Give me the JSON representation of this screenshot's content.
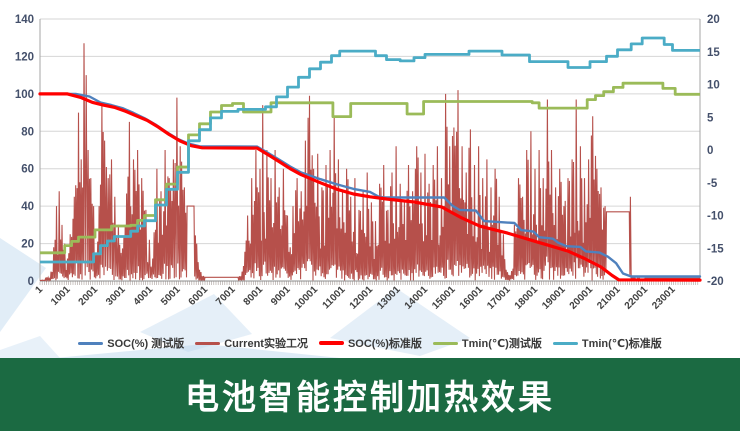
{
  "title_banner": {
    "text": "电池智能控制加热效果",
    "bg_color": "#1B6A42",
    "text_color": "#FFFFFF"
  },
  "chart_data": {
    "type": "line",
    "title": "",
    "grid": true,
    "legend_position": "bottom",
    "x_axis": {
      "range": [
        1,
        24000
      ],
      "tick_labels": [
        "1",
        "1001",
        "2001",
        "3001",
        "4001",
        "5001",
        "6001",
        "7001",
        "8001",
        "9001",
        "10001",
        "11001",
        "12001",
        "13001",
        "14001",
        "15001",
        "16001",
        "17001",
        "18001",
        "19001",
        "20001",
        "21001",
        "22001",
        "23001"
      ]
    },
    "y_axis_left": {
      "range": [
        0,
        140
      ],
      "ticks": [
        0,
        20,
        40,
        60,
        80,
        100,
        120,
        140
      ],
      "label_color": "#44506B"
    },
    "y_axis_right": {
      "range": [
        -20,
        20
      ],
      "ticks": [
        -20,
        -15,
        -10,
        -5,
        0,
        5,
        10,
        15,
        20
      ],
      "label_color": "#44506B"
    },
    "series": [
      {
        "name": "SOC(%) 测试版",
        "color": "#4F81BD",
        "axis": "left",
        "style": "line",
        "width": 2.4,
        "points": [
          [
            1,
            100
          ],
          [
            1300,
            100
          ],
          [
            1800,
            98.6
          ],
          [
            2200,
            95.4
          ],
          [
            2600,
            94
          ],
          [
            3000,
            92.4
          ],
          [
            3400,
            89.8
          ],
          [
            3800,
            87
          ],
          [
            4200,
            83.6
          ],
          [
            4600,
            79.6
          ],
          [
            5000,
            76
          ],
          [
            5400,
            73.4
          ],
          [
            5800,
            72
          ],
          [
            7900,
            71.8
          ],
          [
            8300,
            68.4
          ],
          [
            8700,
            64.8
          ],
          [
            9100,
            61.2
          ],
          [
            9500,
            58
          ],
          [
            10200,
            54.4
          ],
          [
            10800,
            51.6
          ],
          [
            11400,
            49.2
          ],
          [
            12000,
            47.6
          ],
          [
            12300,
            45.2
          ],
          [
            12500,
            44.6
          ],
          [
            14700,
            44.6
          ],
          [
            15000,
            40.2
          ],
          [
            15250,
            38
          ],
          [
            15850,
            37.6
          ],
          [
            16150,
            32
          ],
          [
            17250,
            31
          ],
          [
            17500,
            27.2
          ],
          [
            17950,
            26.4
          ],
          [
            18150,
            23.4
          ],
          [
            18650,
            22.6
          ],
          [
            18850,
            20.4
          ],
          [
            19150,
            18.6
          ],
          [
            19650,
            18.2
          ],
          [
            19850,
            15.8
          ],
          [
            20350,
            15.2
          ],
          [
            20650,
            13
          ],
          [
            20950,
            9.5
          ],
          [
            21200,
            4
          ],
          [
            21500,
            2.4
          ],
          [
            24000,
            2.4
          ]
        ]
      },
      {
        "name": "Current实验工况",
        "color": "#B6504B",
        "axis": "left",
        "style": "spikes",
        "width": 1.1,
        "points": [
          [
            1,
            0
          ],
          [
            250,
            2
          ],
          [
            400,
            5
          ],
          [
            500,
            18
          ],
          [
            600,
            40
          ],
          [
            700,
            48
          ],
          [
            800,
            30
          ],
          [
            900,
            20
          ],
          [
            1000,
            12
          ],
          [
            1100,
            25
          ],
          [
            1250,
            45
          ],
          [
            1400,
            90
          ],
          [
            1500,
            65
          ],
          [
            1600,
            127
          ],
          [
            1680,
            110
          ],
          [
            1750,
            70
          ],
          [
            1850,
            55
          ],
          [
            1950,
            40
          ],
          [
            2050,
            15
          ],
          [
            2150,
            40
          ],
          [
            2250,
            95
          ],
          [
            2350,
            75
          ],
          [
            2480,
            55
          ],
          [
            2600,
            65
          ],
          [
            2720,
            45
          ],
          [
            2850,
            30
          ],
          [
            2950,
            15
          ],
          [
            3100,
            30
          ],
          [
            3250,
            85
          ],
          [
            3400,
            65
          ],
          [
            3550,
            70
          ],
          [
            3700,
            55
          ],
          [
            3850,
            38
          ],
          [
            3980,
            22
          ],
          [
            4100,
            12
          ],
          [
            4250,
            60
          ],
          [
            4400,
            48
          ],
          [
            4550,
            70
          ],
          [
            4700,
            55
          ],
          [
            4850,
            65
          ],
          [
            4980,
            98
          ],
          [
            5100,
            72
          ],
          [
            5250,
            50
          ],
          [
            5350,
            40
          ],
          [
            5600,
            40
          ],
          [
            5700,
            20
          ],
          [
            5800,
            6
          ],
          [
            6000,
            2
          ],
          [
            7200,
            2
          ],
          [
            7400,
            8
          ],
          [
            7550,
            35
          ],
          [
            7700,
            55
          ],
          [
            7850,
            70
          ],
          [
            8000,
            60
          ],
          [
            8100,
            94
          ],
          [
            8250,
            70
          ],
          [
            8400,
            55
          ],
          [
            8550,
            70
          ],
          [
            8700,
            50
          ],
          [
            8850,
            60
          ],
          [
            9000,
            35
          ],
          [
            9100,
            18
          ],
          [
            9200,
            40
          ],
          [
            9350,
            55
          ],
          [
            9500,
            48
          ],
          [
            9650,
            75
          ],
          [
            9800,
            99
          ],
          [
            9950,
            60
          ],
          [
            10100,
            68
          ],
          [
            10250,
            50
          ],
          [
            10400,
            62
          ],
          [
            10550,
            70
          ],
          [
            10700,
            88
          ],
          [
            10850,
            65
          ],
          [
            11000,
            48
          ],
          [
            11150,
            60
          ],
          [
            11300,
            45
          ],
          [
            11450,
            55
          ],
          [
            11600,
            38
          ],
          [
            11750,
            48
          ],
          [
            11900,
            58
          ],
          [
            12050,
            42
          ],
          [
            12200,
            32
          ],
          [
            12350,
            52
          ],
          [
            12500,
            62
          ],
          [
            12650,
            38
          ],
          [
            12800,
            58
          ],
          [
            12950,
            72
          ],
          [
            13100,
            52
          ],
          [
            13250,
            42
          ],
          [
            13400,
            62
          ],
          [
            13550,
            48
          ],
          [
            13700,
            72
          ],
          [
            13850,
            58
          ],
          [
            14000,
            68
          ],
          [
            14150,
            52
          ],
          [
            14300,
            62
          ],
          [
            14450,
            72
          ],
          [
            14600,
            55
          ],
          [
            14750,
            100
          ],
          [
            14900,
            72
          ],
          [
            15050,
            82
          ],
          [
            15200,
            102
          ],
          [
            15350,
            72
          ],
          [
            15500,
            58
          ],
          [
            15650,
            81
          ],
          [
            15800,
            62
          ],
          [
            15950,
            72
          ],
          [
            16100,
            55
          ],
          [
            16250,
            65
          ],
          [
            16400,
            50
          ],
          [
            16550,
            60
          ],
          [
            16700,
            45
          ],
          [
            16850,
            25
          ],
          [
            16950,
            6
          ],
          [
            17100,
            3
          ],
          [
            17250,
            30
          ],
          [
            17400,
            55
          ],
          [
            17550,
            45
          ],
          [
            17700,
            70
          ],
          [
            17850,
            80
          ],
          [
            18000,
            60
          ],
          [
            18150,
            70
          ],
          [
            18300,
            55
          ],
          [
            18450,
            97
          ],
          [
            18600,
            70
          ],
          [
            18750,
            50
          ],
          [
            18900,
            60
          ],
          [
            19050,
            40
          ],
          [
            19200,
            55
          ],
          [
            19350,
            65
          ],
          [
            19500,
            97
          ],
          [
            19650,
            72
          ],
          [
            19800,
            55
          ],
          [
            19950,
            65
          ],
          [
            20100,
            88
          ],
          [
            20250,
            60
          ],
          [
            20400,
            50
          ],
          [
            20550,
            40
          ],
          [
            20600,
            37
          ],
          [
            21430,
            37
          ],
          [
            21470,
            45
          ],
          [
            21520,
            3
          ],
          [
            22000,
            1.5
          ],
          [
            24000,
            1.5
          ]
        ]
      },
      {
        "name": "SOC(%)标准版",
        "color": "#FF0000",
        "axis": "left",
        "style": "line",
        "width": 3.2,
        "points": [
          [
            1,
            100
          ],
          [
            1000,
            100
          ],
          [
            1500,
            98
          ],
          [
            1900,
            95.5
          ],
          [
            2300,
            94
          ],
          [
            2700,
            92.8
          ],
          [
            3100,
            90.8
          ],
          [
            3500,
            88.3
          ],
          [
            3900,
            85.8
          ],
          [
            4300,
            82.3
          ],
          [
            4700,
            78.3
          ],
          [
            5100,
            74.8
          ],
          [
            5500,
            72.3
          ],
          [
            5900,
            71.2
          ],
          [
            7900,
            71
          ],
          [
            8300,
            67.5
          ],
          [
            8700,
            63.8
          ],
          [
            9100,
            60
          ],
          [
            9500,
            56.8
          ],
          [
            10200,
            52.5
          ],
          [
            10800,
            49
          ],
          [
            11400,
            46.5
          ],
          [
            12000,
            45
          ],
          [
            12600,
            43.8
          ],
          [
            13600,
            42.2
          ],
          [
            14600,
            39.6
          ],
          [
            15300,
            34
          ],
          [
            16000,
            29.3
          ],
          [
            17000,
            25.6
          ],
          [
            18000,
            21.2
          ],
          [
            18600,
            18.6
          ],
          [
            19200,
            16
          ],
          [
            19800,
            12
          ],
          [
            20400,
            7.5
          ],
          [
            20800,
            3
          ],
          [
            21050,
            0.6
          ],
          [
            24000,
            0.5
          ]
        ]
      },
      {
        "name": "Tmin(℃)测试版",
        "color": "#9BBB59",
        "axis": "right",
        "style": "step",
        "width": 2.8,
        "points": [
          [
            1,
            -15.7
          ],
          [
            550,
            -15.7
          ],
          [
            900,
            -14.6
          ],
          [
            1400,
            -13.3
          ],
          [
            2000,
            -12.2
          ],
          [
            2600,
            -11.6
          ],
          [
            3300,
            -11.5
          ],
          [
            3800,
            -10
          ],
          [
            4200,
            -7.6
          ],
          [
            4600,
            -5.2
          ],
          [
            5000,
            -2.6
          ],
          [
            5400,
            2.3
          ],
          [
            5800,
            4
          ],
          [
            6200,
            5.8
          ],
          [
            6600,
            6.8
          ],
          [
            7000,
            7.1
          ],
          [
            7400,
            5.8
          ],
          [
            8200,
            5.8
          ],
          [
            8400,
            7.2
          ],
          [
            10500,
            7.2
          ],
          [
            10650,
            5.1
          ],
          [
            11100,
            5.1
          ],
          [
            11300,
            7.1
          ],
          [
            13200,
            7.1
          ],
          [
            13350,
            5.5
          ],
          [
            13750,
            5.5
          ],
          [
            13950,
            7.4
          ],
          [
            17900,
            7.2
          ],
          [
            18150,
            6.4
          ],
          [
            19600,
            6.4
          ],
          [
            19900,
            7.7
          ],
          [
            20500,
            8.9
          ],
          [
            21200,
            10.2
          ],
          [
            22400,
            10.2
          ],
          [
            22650,
            9.4
          ],
          [
            23100,
            8.5
          ],
          [
            24000,
            8.5
          ]
        ]
      },
      {
        "name": "Tmin(℃)标准版",
        "color": "#4BACC6",
        "axis": "right",
        "style": "step",
        "width": 2.8,
        "points": [
          [
            1,
            -17.1
          ],
          [
            1700,
            -17.1
          ],
          [
            2200,
            -14.6
          ],
          [
            2700,
            -13.2
          ],
          [
            3300,
            -12.4
          ],
          [
            3800,
            -10.8
          ],
          [
            4200,
            -8.4
          ],
          [
            4600,
            -6
          ],
          [
            5000,
            -3.4
          ],
          [
            5400,
            1.4
          ],
          [
            5800,
            3.1
          ],
          [
            6200,
            4.9
          ],
          [
            6600,
            5.9
          ],
          [
            7200,
            6.2
          ],
          [
            8200,
            6.6
          ],
          [
            8600,
            8.1
          ],
          [
            9000,
            9.6
          ],
          [
            9400,
            11.1
          ],
          [
            9800,
            12.4
          ],
          [
            10200,
            13.4
          ],
          [
            10600,
            14.4
          ],
          [
            10900,
            15.1
          ],
          [
            12200,
            14.4
          ],
          [
            12600,
            13.8
          ],
          [
            13100,
            13.6
          ],
          [
            13600,
            14.1
          ],
          [
            14000,
            14.6
          ],
          [
            15600,
            15.1
          ],
          [
            16800,
            14.5
          ],
          [
            17800,
            13.5
          ],
          [
            19200,
            12.6
          ],
          [
            20000,
            13.5
          ],
          [
            20600,
            14.3
          ],
          [
            21000,
            15.3
          ],
          [
            21500,
            16.2
          ],
          [
            21900,
            17.1
          ],
          [
            22700,
            16.1
          ],
          [
            23000,
            15.2
          ],
          [
            24000,
            15.2
          ]
        ]
      }
    ]
  }
}
